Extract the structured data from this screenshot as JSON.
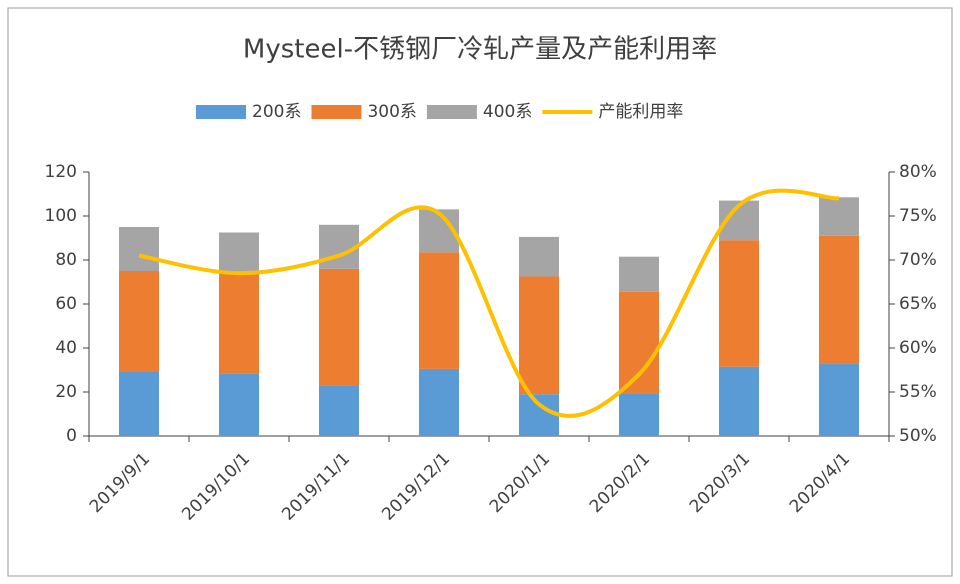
{
  "chart_data": {
    "type": "bar",
    "title": "Mysteel-不锈钢厂冷轧产量及产能利用率",
    "categories": [
      "2019/9/1",
      "2019/10/1",
      "2019/11/1",
      "2019/12/1",
      "2020/1/1",
      "2020/2/1",
      "2020/3/1",
      "2020/4/1"
    ],
    "stacked": true,
    "series": [
      {
        "name": "200系",
        "color": "#5b9bd5",
        "type": "bar",
        "values": [
          29.5,
          28.5,
          23,
          30.5,
          19,
          19.5,
          31.5,
          33
        ]
      },
      {
        "name": "300系",
        "color": "#ed7d31",
        "type": "bar",
        "values": [
          45.5,
          45.5,
          53,
          53,
          53.5,
          46,
          57.5,
          58
        ]
      },
      {
        "name": "400系",
        "color": "#a5a5a5",
        "type": "bar",
        "values": [
          20,
          18.5,
          20,
          19.5,
          18,
          16,
          18,
          17.5
        ]
      },
      {
        "name": "产能利用率",
        "color": "#ffc000",
        "type": "line",
        "axis": "y2",
        "smooth": true,
        "values": [
          70.5,
          68.5,
          70.5,
          75.3,
          53.6,
          57,
          76.2,
          77
        ]
      }
    ],
    "ylim": [
      0,
      120
    ],
    "yticks": [
      0,
      20,
      40,
      60,
      80,
      100,
      120
    ],
    "y2lim": [
      50,
      80
    ],
    "y2ticks": [
      {
        "value": 50,
        "label": "50%"
      },
      {
        "value": 55,
        "label": "55%"
      },
      {
        "value": 60,
        "label": "60%"
      },
      {
        "value": 65,
        "label": "65%"
      },
      {
        "value": 70,
        "label": "70%"
      },
      {
        "value": 75,
        "label": "75%"
      },
      {
        "value": 80,
        "label": "80%"
      }
    ],
    "legend": "top",
    "grid": false
  }
}
